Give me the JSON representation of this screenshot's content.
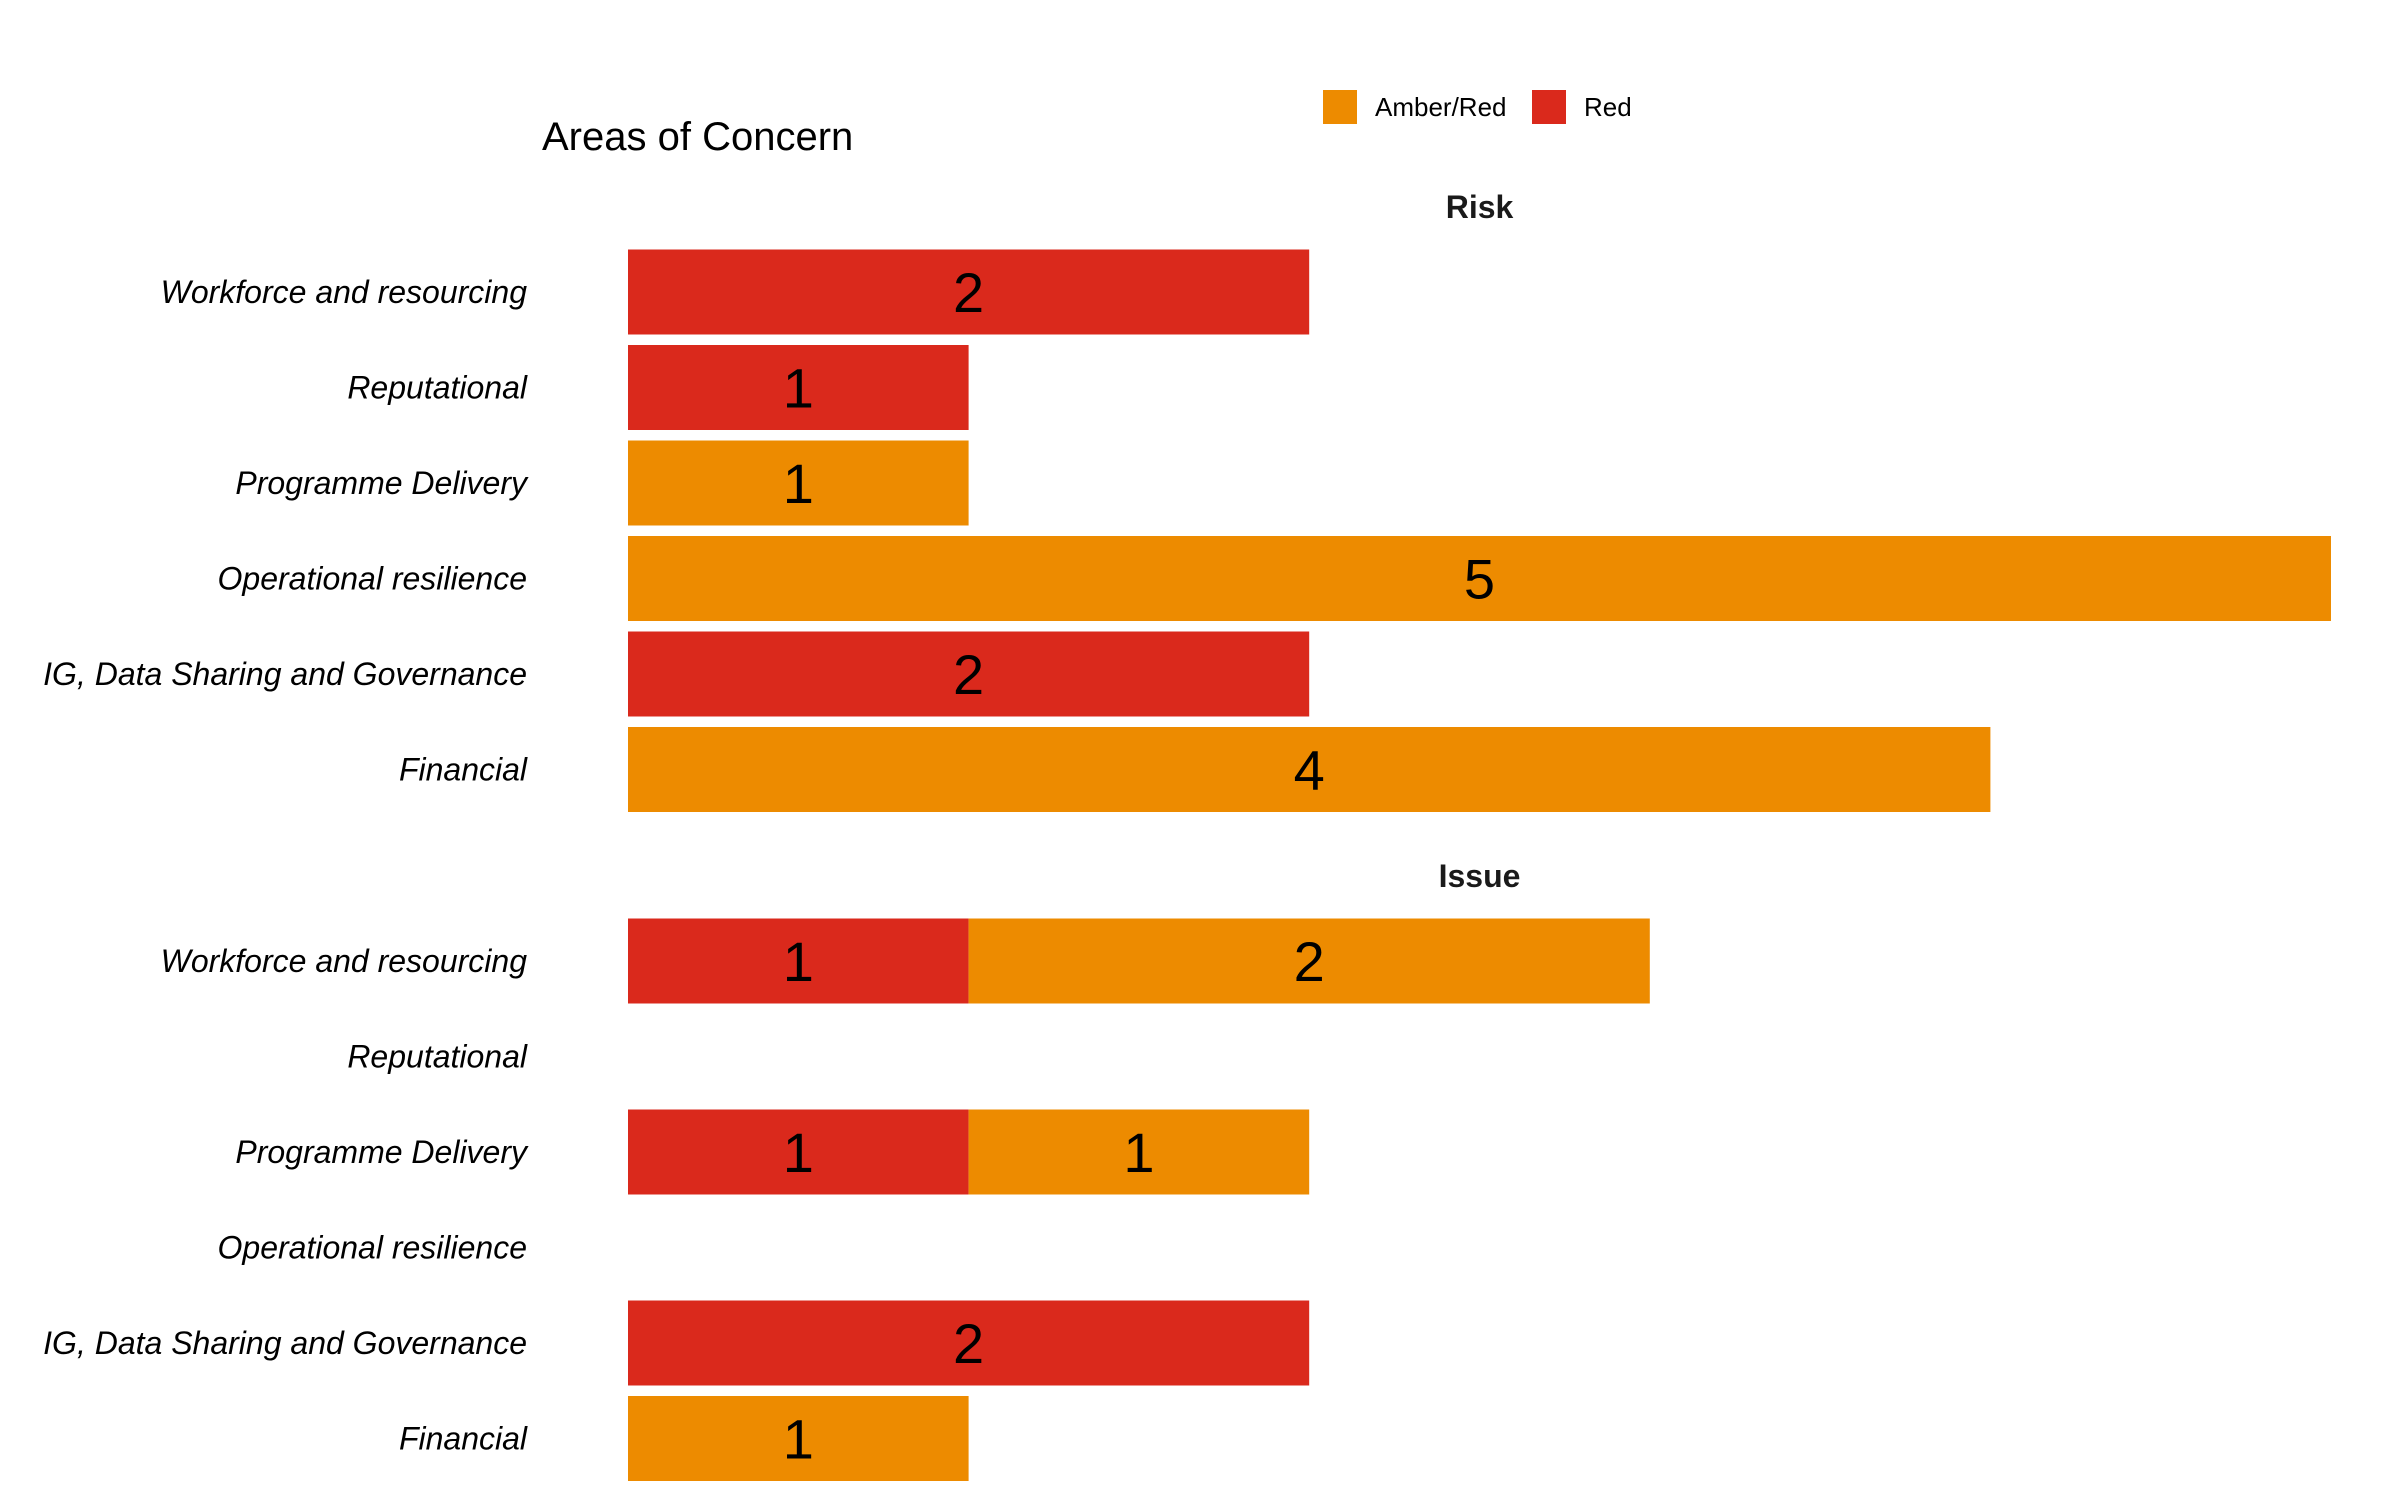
{
  "chart_data": {
    "type": "bar",
    "orientation": "horizontal",
    "stacked": true,
    "title": "Areas of Concern",
    "xlabel": "",
    "ylabel": "",
    "xlim": [
      0,
      5
    ],
    "grid": false,
    "legend": {
      "placement": "top-right",
      "entries": [
        {
          "name": "Amber/Red",
          "color": "#ED8B00"
        },
        {
          "name": "Red",
          "color": "#DA291C"
        }
      ]
    },
    "categories": [
      "Workforce and resourcing",
      "Reputational",
      "Programme Delivery",
      "Operational resilience",
      "IG, Data Sharing and Governance",
      "Financial"
    ],
    "facets": [
      {
        "name": "Risk",
        "series": [
          {
            "name": "Red",
            "color": "#DA291C",
            "values": [
              2,
              1,
              0,
              0,
              2,
              0
            ]
          },
          {
            "name": "Amber/Red",
            "color": "#ED8B00",
            "values": [
              0,
              0,
              1,
              5,
              0,
              4
            ]
          }
        ]
      },
      {
        "name": "Issue",
        "series": [
          {
            "name": "Red",
            "color": "#DA291C",
            "values": [
              1,
              0,
              1,
              0,
              2,
              0
            ]
          },
          {
            "name": "Amber/Red",
            "color": "#ED8B00",
            "values": [
              2,
              0,
              1,
              0,
              0,
              1
            ]
          }
        ]
      }
    ]
  }
}
